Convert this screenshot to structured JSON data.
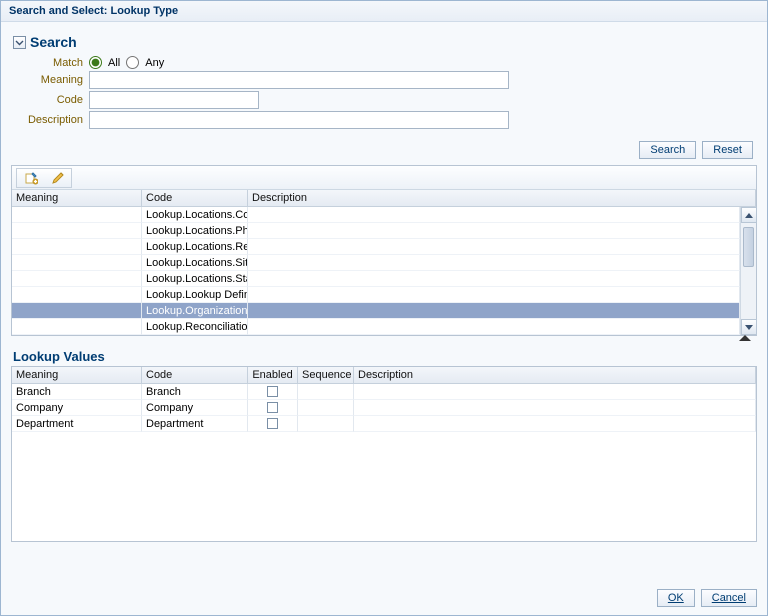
{
  "dialogTitle": "Search and Select: Lookup Type",
  "search": {
    "sectionLabel": "Search",
    "matchLabel": "Match",
    "allLabel": "All",
    "anyLabel": "Any",
    "meaningLabel": "Meaning",
    "codeLabel": "Code",
    "descriptionLabel": "Description",
    "meaningValue": "",
    "codeValue": "",
    "descriptionValue": "",
    "searchBtn": "Search",
    "resetBtn": "Reset"
  },
  "resultsTable": {
    "columns": {
      "meaning": "Meaning",
      "code": "Code",
      "description": "Description"
    },
    "rows": [
      {
        "meaning": "",
        "code": "Lookup.Locations.Cou",
        "description": ""
      },
      {
        "meaning": "",
        "code": "Lookup.Locations.Pho",
        "description": ""
      },
      {
        "meaning": "",
        "code": "Lookup.Locations.Reg",
        "description": ""
      },
      {
        "meaning": "",
        "code": "Lookup.Locations.Site",
        "description": ""
      },
      {
        "meaning": "",
        "code": "Lookup.Locations.Sta",
        "description": ""
      },
      {
        "meaning": "",
        "code": "Lookup.Lookup Defini",
        "description": ""
      },
      {
        "meaning": "",
        "code": "Lookup.Organization.",
        "description": "",
        "selected": true
      },
      {
        "meaning": "",
        "code": "Lookup.Reconciliation",
        "description": ""
      }
    ]
  },
  "lookupValues": {
    "title": "Lookup Values",
    "columns": {
      "meaning": "Meaning",
      "code": "Code",
      "enabled": "Enabled",
      "sequence": "Sequence",
      "description": "Description"
    },
    "rows": [
      {
        "meaning": "Branch",
        "code": "Branch",
        "enabled": false,
        "sequence": "",
        "description": ""
      },
      {
        "meaning": "Company",
        "code": "Company",
        "enabled": false,
        "sequence": "",
        "description": ""
      },
      {
        "meaning": "Department",
        "code": "Department",
        "enabled": false,
        "sequence": "",
        "description": ""
      }
    ]
  },
  "footer": {
    "ok": "OK",
    "cancel": "Cancel"
  }
}
